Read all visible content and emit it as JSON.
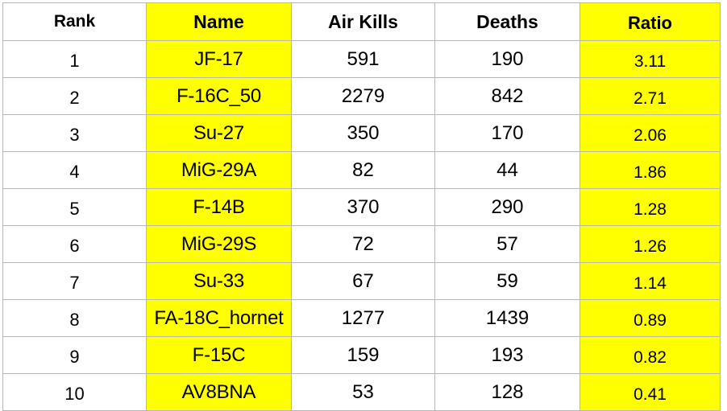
{
  "highlight_color": "#ffff00",
  "headers": {
    "rank": "Rank",
    "name": "Name",
    "air_kills": "Air Kills",
    "deaths": "Deaths",
    "ratio": "Ratio"
  },
  "rows": [
    {
      "rank": "1",
      "name": "JF-17",
      "air_kills": "591",
      "deaths": "190",
      "ratio": "3.11"
    },
    {
      "rank": "2",
      "name": "F-16C_50",
      "air_kills": "2279",
      "deaths": "842",
      "ratio": "2.71"
    },
    {
      "rank": "3",
      "name": "Su-27",
      "air_kills": "350",
      "deaths": "170",
      "ratio": "2.06"
    },
    {
      "rank": "4",
      "name": "MiG-29A",
      "air_kills": "82",
      "deaths": "44",
      "ratio": "1.86"
    },
    {
      "rank": "5",
      "name": "F-14B",
      "air_kills": "370",
      "deaths": "290",
      "ratio": "1.28"
    },
    {
      "rank": "6",
      "name": "MiG-29S",
      "air_kills": "72",
      "deaths": "57",
      "ratio": "1.26"
    },
    {
      "rank": "7",
      "name": "Su-33",
      "air_kills": "67",
      "deaths": "59",
      "ratio": "1.14"
    },
    {
      "rank": "8",
      "name": "FA-18C_hornet",
      "air_kills": "1277",
      "deaths": "1439",
      "ratio": "0.89"
    },
    {
      "rank": "9",
      "name": "F-15C",
      "air_kills": "159",
      "deaths": "193",
      "ratio": "0.82"
    },
    {
      "rank": "10",
      "name": "AV8BNA",
      "air_kills": "53",
      "deaths": "128",
      "ratio": "0.41"
    }
  ]
}
